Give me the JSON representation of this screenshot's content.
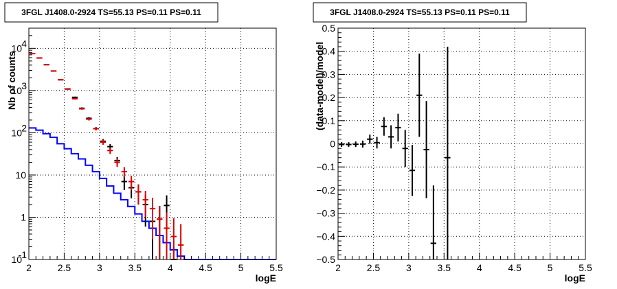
{
  "chart_data": [
    {
      "type": "line",
      "title": "3FGL J1408.0-2924 TS=55.13 PS=0.11 PS=0.11",
      "xlabel": "logE",
      "ylabel": "Nb of counts",
      "xlim": [
        2,
        5.5
      ],
      "ylim": [
        0.1,
        30000
      ],
      "yscale": "log",
      "grid": true,
      "x_ticks": [
        "2",
        "2.5",
        "3",
        "3.5",
        "4",
        "4.5",
        "5",
        "5.5"
      ],
      "y_ticks": [
        {
          "value": 0.1,
          "base": "10",
          "exp": "-1"
        },
        {
          "value": 1,
          "base": "1",
          "exp": ""
        },
        {
          "value": 10,
          "base": "10",
          "exp": ""
        },
        {
          "value": 100,
          "base": "10",
          "exp": "2"
        },
        {
          "value": 1000,
          "base": "10",
          "exp": "3"
        },
        {
          "value": 10000,
          "base": "10",
          "exp": "4"
        }
      ],
      "bin_width": 0.1,
      "series": [
        {
          "kind": "step",
          "color": "#0000ff",
          "x": [
            2.05,
            2.15,
            2.25,
            2.35,
            2.45,
            2.55,
            2.65,
            2.75,
            2.85,
            2.95,
            3.05,
            3.15,
            3.25,
            3.35,
            3.45,
            3.55,
            3.65,
            3.75,
            3.85,
            3.95,
            4.05,
            4.15,
            4.25,
            4.35,
            4.45,
            4.55,
            4.65,
            4.75,
            4.85,
            4.95,
            5.05,
            5.15,
            5.25,
            5.35,
            5.45
          ],
          "y": [
            130,
            115,
            95,
            78,
            55,
            42,
            32,
            24,
            17,
            12,
            8.3,
            5.5,
            3.7,
            2.6,
            1.8,
            1.2,
            0.8,
            0.55,
            0.37,
            0.25,
            0.17,
            0.12,
            0.1,
            0.1,
            0.1,
            0.1,
            0.1,
            0.1,
            0.1,
            0.1,
            0.1,
            0.1,
            0.1,
            0.1,
            0.1
          ]
        },
        {
          "kind": "errorbar",
          "color": "#000000",
          "x": [
            2.05,
            2.15,
            2.25,
            2.35,
            2.45,
            2.55,
            2.65,
            2.75,
            2.85,
            2.95,
            3.05,
            3.15,
            3.25,
            3.35,
            3.45,
            3.55,
            3.65,
            3.75,
            3.85,
            3.95,
            4.05
          ],
          "y": [
            7500,
            5900,
            4100,
            2900,
            1800,
            1090,
            690,
            380,
            220,
            125,
            63,
            47,
            22,
            7,
            5,
            4,
            2,
            0.8,
            0.9,
            1.9,
            0.1
          ],
          "yerr": [
            90,
            80,
            65,
            55,
            42,
            33,
            26,
            19,
            15,
            11,
            8,
            7,
            4.6,
            2.6,
            2.2,
            2,
            1.4,
            0.9,
            0.95,
            1.4,
            0.1
          ]
        },
        {
          "kind": "errorbar",
          "color": "#dd0000",
          "x": [
            2.05,
            2.15,
            2.25,
            2.35,
            2.45,
            2.55,
            2.65,
            2.75,
            2.85,
            2.95,
            3.05,
            3.15,
            3.25,
            3.35,
            3.45,
            3.55,
            3.65,
            3.75,
            3.85,
            3.95,
            4.05,
            4.15
          ],
          "y": [
            7500,
            5900,
            4100,
            2900,
            1800,
            1080,
            640,
            370,
            210,
            125,
            60,
            38,
            20,
            12,
            7,
            4,
            2.6,
            1.6,
            0.9,
            0.55,
            0.35,
            0.22
          ],
          "yerr": [
            90,
            80,
            65,
            55,
            42,
            33,
            26,
            19,
            15,
            11,
            8,
            6.5,
            4.5,
            3.4,
            2.6,
            2,
            1.6,
            1.3,
            0.95,
            0.75,
            0.6,
            0.47
          ]
        }
      ]
    },
    {
      "type": "scatter",
      "title": "3FGL J1408.0-2924 TS=55.13 PS=0.11 PS=0.11",
      "xlabel": "logE",
      "ylabel": "(data-model)/model",
      "xlim": [
        2,
        5.5
      ],
      "ylim": [
        -0.5,
        0.5
      ],
      "grid": true,
      "x_ticks": [
        "2",
        "2.5",
        "3",
        "3.5",
        "4",
        "4.5",
        "5",
        "5.5"
      ],
      "y_ticks": [
        "−0.5",
        "−0.4",
        "−0.3",
        "−0.2",
        "−0.1",
        "0",
        "0.1",
        "0.2",
        "0.3",
        "0.4",
        "0.5"
      ],
      "bin_width": 0.1,
      "series": [
        {
          "kind": "errorbar",
          "color": "#000000",
          "x": [
            2.05,
            2.15,
            2.25,
            2.35,
            2.45,
            2.55,
            2.65,
            2.75,
            2.85,
            2.95,
            3.05,
            3.15,
            3.25,
            3.35,
            3.55
          ],
          "y": [
            -0.003,
            -0.003,
            -0.002,
            -0.001,
            0.02,
            0.005,
            0.075,
            0.03,
            0.07,
            -0.02,
            -0.115,
            0.21,
            -0.025,
            -0.43,
            -0.06
          ],
          "yerr": [
            0.01,
            0.01,
            0.012,
            0.015,
            0.02,
            0.025,
            0.04,
            0.05,
            0.06,
            0.08,
            0.11,
            0.18,
            0.21,
            0.25,
            0.48
          ]
        }
      ]
    }
  ]
}
